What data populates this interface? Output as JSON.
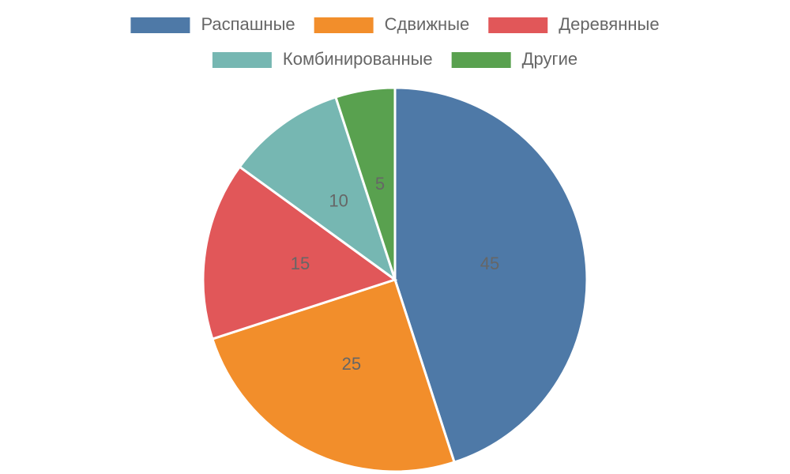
{
  "chart_data": {
    "type": "pie",
    "categories": [
      "Распашные",
      "Сдвижные",
      "Деревянные",
      "Комбинированные",
      "Другие"
    ],
    "values": [
      45,
      25,
      15,
      10,
      5
    ],
    "colors": [
      "#4e79a7",
      "#f28e2b",
      "#e15759",
      "#76b7b2",
      "#59a14f"
    ],
    "legend": "top"
  }
}
